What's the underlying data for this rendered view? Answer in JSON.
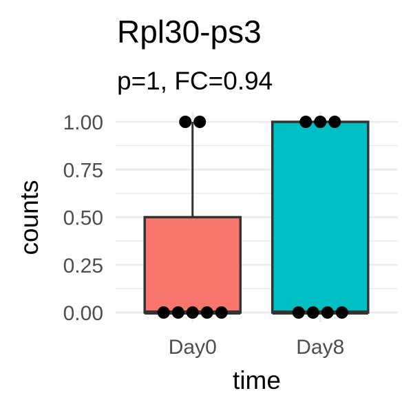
{
  "chart_data": {
    "type": "box",
    "title": "Rpl30-ps3",
    "subtitle": "p=1, FC=0.94",
    "xlabel": "time",
    "ylabel": "counts",
    "categories": [
      "Day0",
      "Day8"
    ],
    "ylim": [
      0,
      1
    ],
    "yticks": [
      0.0,
      0.25,
      0.5,
      0.75,
      1.0
    ],
    "ytick_labels": [
      "0.00",
      "0.25",
      "0.50",
      "0.75",
      "1.00"
    ],
    "grid": true,
    "legend": "none",
    "boxes": [
      {
        "category": "Day0",
        "min": 0,
        "q1": 0,
        "median": 0,
        "q3": 0.5,
        "max": 1,
        "color": "#F8766D"
      },
      {
        "category": "Day8",
        "min": 0,
        "q1": 0,
        "median": 0,
        "q3": 1.0,
        "max": 1,
        "color": "#00BFC4"
      }
    ],
    "points": [
      {
        "category": "Day0",
        "values": [
          0,
          0,
          0,
          0,
          0,
          1,
          1
        ]
      },
      {
        "category": "Day8",
        "values": [
          0,
          0,
          0,
          0,
          1,
          1,
          1
        ]
      }
    ]
  }
}
